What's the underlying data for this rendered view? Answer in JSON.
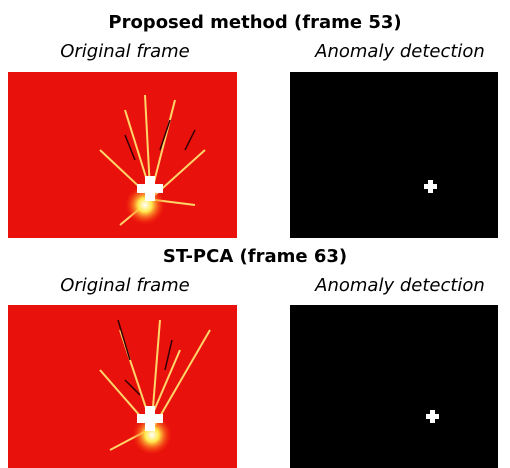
{
  "panels": [
    {
      "title": "Proposed method (frame 53)",
      "left_caption": "Original frame",
      "right_caption": "Anomaly detection"
    },
    {
      "title": "ST-PCA (frame 63)",
      "left_caption": "Original frame",
      "right_caption": "Anomaly detection"
    }
  ]
}
